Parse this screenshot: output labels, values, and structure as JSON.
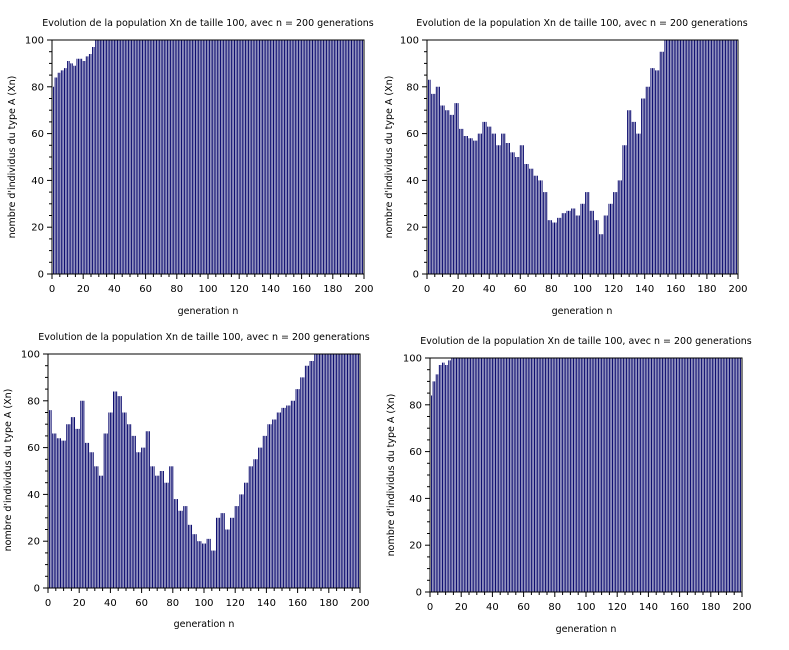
{
  "colors": {
    "bar": "#0a0a6e",
    "axis": "#000000",
    "background": "#ffffff"
  },
  "chart_data": [
    {
      "type": "bar",
      "title": "Evolution de la population Xn de taille 100, avec n = 200 generations",
      "xlabel": "generation n",
      "ylabel": "nombre d'individus du type A (Xn)",
      "xlim": [
        0,
        200
      ],
      "ylim": [
        0,
        100
      ],
      "xticks": [
        0,
        20,
        40,
        60,
        80,
        100,
        120,
        140,
        160,
        180,
        200
      ],
      "yticks": [
        0,
        20,
        40,
        60,
        80,
        100
      ],
      "grid": false,
      "x": [
        0,
        2,
        4,
        6,
        8,
        10,
        12,
        14,
        16,
        18,
        20,
        22,
        24,
        26,
        28,
        30,
        200
      ],
      "values": [
        80,
        84,
        86,
        87,
        88,
        91,
        90,
        89,
        92,
        92,
        91,
        93,
        94,
        97,
        100,
        100,
        100
      ]
    },
    {
      "type": "bar",
      "title": "Evolution de la population Xn de taille 100, avec n = 200 generations",
      "xlabel": "generation n",
      "ylabel": "nombre d'individus du type A (Xn)",
      "xlim": [
        0,
        200
      ],
      "ylim": [
        0,
        100
      ],
      "xticks": [
        0,
        20,
        40,
        60,
        80,
        100,
        120,
        140,
        160,
        180,
        200
      ],
      "yticks": [
        0,
        20,
        40,
        60,
        80,
        100
      ],
      "grid": false,
      "x": [
        0,
        3,
        6,
        9,
        12,
        15,
        18,
        21,
        24,
        27,
        30,
        33,
        36,
        39,
        42,
        45,
        48,
        51,
        54,
        57,
        60,
        63,
        66,
        69,
        72,
        75,
        78,
        81,
        84,
        87,
        90,
        93,
        96,
        99,
        102,
        105,
        108,
        111,
        114,
        117,
        120,
        123,
        126,
        129,
        132,
        135,
        138,
        141,
        144,
        147,
        150,
        153,
        200
      ],
      "values": [
        83,
        77,
        80,
        72,
        70,
        68,
        73,
        62,
        59,
        58,
        57,
        60,
        65,
        63,
        60,
        55,
        60,
        56,
        52,
        50,
        55,
        47,
        45,
        42,
        40,
        35,
        23,
        22,
        24,
        26,
        27,
        28,
        25,
        30,
        35,
        27,
        23,
        17,
        25,
        30,
        35,
        40,
        55,
        70,
        65,
        60,
        75,
        80,
        88,
        87,
        95,
        100,
        100
      ]
    },
    {
      "type": "bar",
      "title": "Evolution de la population Xn de taille 100, avec n = 200 generations",
      "xlabel": "generation n",
      "ylabel": "nombre d'individus du type A (Xn)",
      "xlim": [
        0,
        200
      ],
      "ylim": [
        0,
        100
      ],
      "xticks": [
        0,
        20,
        40,
        60,
        80,
        100,
        120,
        140,
        160,
        180,
        200
      ],
      "yticks": [
        0,
        20,
        40,
        60,
        80,
        100
      ],
      "grid": false,
      "x": [
        0,
        3,
        6,
        9,
        12,
        15,
        18,
        21,
        24,
        27,
        30,
        33,
        36,
        39,
        42,
        45,
        48,
        51,
        54,
        57,
        60,
        63,
        66,
        69,
        72,
        75,
        78,
        81,
        84,
        87,
        90,
        93,
        96,
        99,
        102,
        105,
        108,
        111,
        114,
        117,
        120,
        123,
        126,
        129,
        132,
        135,
        138,
        141,
        144,
        147,
        150,
        153,
        156,
        159,
        162,
        165,
        168,
        171,
        200
      ],
      "values": [
        76,
        66,
        64,
        63,
        70,
        73,
        68,
        80,
        62,
        58,
        52,
        48,
        66,
        75,
        84,
        82,
        75,
        70,
        65,
        58,
        60,
        67,
        52,
        48,
        50,
        45,
        52,
        38,
        33,
        35,
        27,
        23,
        20,
        19,
        21,
        16,
        30,
        32,
        25,
        30,
        35,
        40,
        45,
        52,
        55,
        60,
        65,
        70,
        72,
        75,
        77,
        78,
        80,
        85,
        90,
        95,
        97,
        100,
        100
      ]
    },
    {
      "type": "bar",
      "title": "Evolution de la population Xn de taille 100, avec n = 200 generations",
      "xlabel": "generation n",
      "ylabel": "nombre d'individus du type A (Xn)",
      "xlim": [
        0,
        200
      ],
      "ylim": [
        0,
        100
      ],
      "xticks": [
        0,
        20,
        40,
        60,
        80,
        100,
        120,
        140,
        160,
        180,
        200
      ],
      "yticks": [
        0,
        20,
        40,
        60,
        80,
        100
      ],
      "grid": false,
      "x": [
        0,
        2,
        4,
        6,
        8,
        10,
        12,
        14,
        200
      ],
      "values": [
        84,
        90,
        93,
        97,
        98,
        97,
        99,
        100,
        100
      ]
    }
  ]
}
